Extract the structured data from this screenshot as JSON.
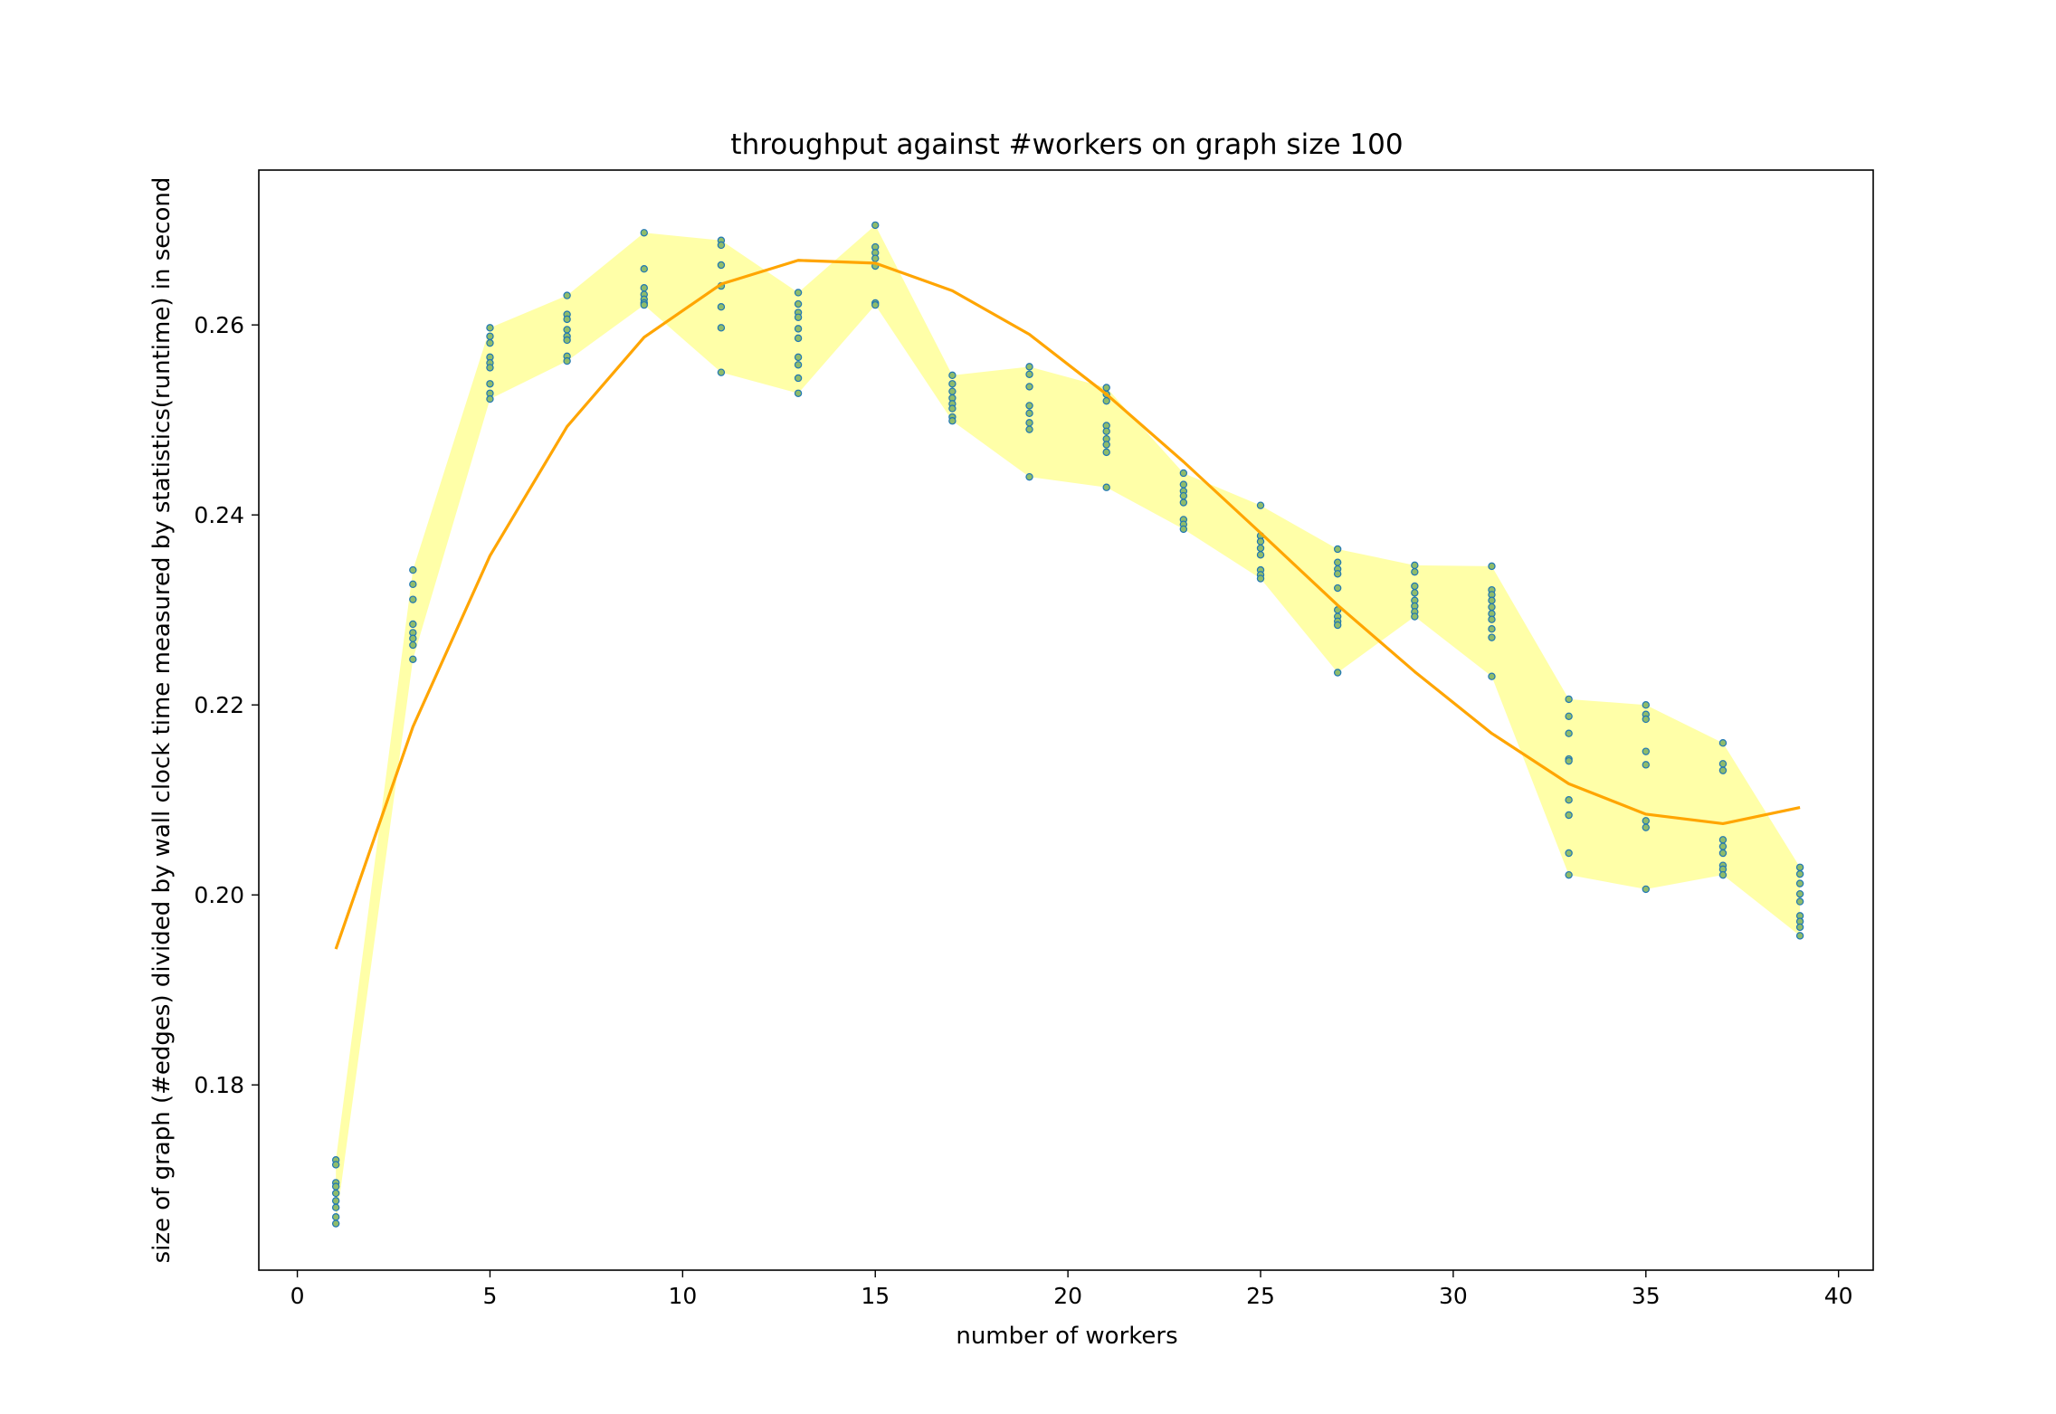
{
  "chart_data": {
    "type": "scatter",
    "title": "throughput against #workers on graph size 100",
    "xlabel": "number of workers",
    "ylabel": "size of graph (#edges) divided by wall clock time measured by statistics(runtime) in second",
    "xlim": [
      -1,
      40.9
    ],
    "ylim": [
      0.1605,
      0.2763
    ],
    "xticks": [
      0,
      5,
      10,
      15,
      20,
      25,
      30,
      35,
      40
    ],
    "yticks": [
      0.18,
      0.2,
      0.22,
      0.24,
      0.26
    ],
    "ytick_labels": [
      "0.18",
      "0.20",
      "0.22",
      "0.24",
      "0.26"
    ],
    "grid": false,
    "legend": "none",
    "colors": {
      "points_edge": "#1f77b4",
      "points_fill": "#8fbc6a",
      "band": "#ffff99",
      "fit_line": "#ffa500"
    },
    "points": [
      {
        "x": 1,
        "ys": [
          0.1721,
          0.1716,
          0.1697,
          0.1693,
          0.1686,
          0.1678,
          0.1671,
          0.1661,
          0.1654
        ]
      },
      {
        "x": 3,
        "ys": [
          0.2342,
          0.2327,
          0.2311,
          0.2285,
          0.2276,
          0.227,
          0.2263,
          0.2248
        ]
      },
      {
        "x": 5,
        "ys": [
          0.2597,
          0.2588,
          0.2581,
          0.2566,
          0.256,
          0.2555,
          0.2538,
          0.2528,
          0.2522
        ]
      },
      {
        "x": 7,
        "ys": [
          0.2631,
          0.2611,
          0.2606,
          0.2595,
          0.2588,
          0.2584,
          0.2567,
          0.2562
        ]
      },
      {
        "x": 9,
        "ys": [
          0.2697,
          0.2659,
          0.2639,
          0.2632,
          0.2627,
          0.2623,
          0.2621
        ]
      },
      {
        "x": 11,
        "ys": [
          0.2689,
          0.2684,
          0.2663,
          0.2641,
          0.2619,
          0.2597,
          0.255
        ]
      },
      {
        "x": 13,
        "ys": [
          0.2634,
          0.2622,
          0.2613,
          0.2608,
          0.2596,
          0.2586,
          0.2566,
          0.2558,
          0.2544,
          0.2528
        ]
      },
      {
        "x": 15,
        "ys": [
          0.2705,
          0.2682,
          0.2676,
          0.267,
          0.2662,
          0.2623,
          0.2621
        ]
      },
      {
        "x": 17,
        "ys": [
          0.2547,
          0.2538,
          0.253,
          0.2523,
          0.2517,
          0.2512,
          0.2503,
          0.2499
        ]
      },
      {
        "x": 19,
        "ys": [
          0.2556,
          0.2548,
          0.2535,
          0.2515,
          0.2507,
          0.2497,
          0.249,
          0.244
        ]
      },
      {
        "x": 21,
        "ys": [
          0.2534,
          0.2527,
          0.252,
          0.2494,
          0.2488,
          0.248,
          0.2474,
          0.2466,
          0.2429
        ]
      },
      {
        "x": 23,
        "ys": [
          0.2444,
          0.2432,
          0.2425,
          0.242,
          0.2413,
          0.2395,
          0.239,
          0.2385
        ]
      },
      {
        "x": 25,
        "ys": [
          0.241,
          0.2378,
          0.2372,
          0.2365,
          0.2358,
          0.2342,
          0.2337,
          0.2333
        ]
      },
      {
        "x": 27,
        "ys": [
          0.2364,
          0.235,
          0.2343,
          0.2338,
          0.2323,
          0.23,
          0.2293,
          0.2288,
          0.2284,
          0.2234
        ]
      },
      {
        "x": 29,
        "ys": [
          0.2347,
          0.234,
          0.2325,
          0.2318,
          0.231,
          0.2304,
          0.2298,
          0.2293
        ]
      },
      {
        "x": 31,
        "ys": [
          0.2346,
          0.2321,
          0.2316,
          0.231,
          0.2303,
          0.2296,
          0.229,
          0.228,
          0.2271,
          0.223
        ]
      },
      {
        "x": 33,
        "ys": [
          0.2206,
          0.2188,
          0.217,
          0.2143,
          0.2141,
          0.21,
          0.2084,
          0.2044,
          0.2021
        ]
      },
      {
        "x": 35,
        "ys": [
          0.22,
          0.219,
          0.2185,
          0.2151,
          0.2137,
          0.2078,
          0.2071,
          0.2006
        ]
      },
      {
        "x": 37,
        "ys": [
          0.216,
          0.2138,
          0.2131,
          0.2058,
          0.2051,
          0.2044,
          0.2031,
          0.2027,
          0.2021
        ]
      },
      {
        "x": 39,
        "ys": [
          0.2029,
          0.2022,
          0.2012,
          0.2001,
          0.1993,
          0.1978,
          0.1972,
          0.1966,
          0.1957
        ]
      }
    ],
    "fit_line": {
      "x": [
        1,
        3,
        5,
        7,
        9,
        11,
        13,
        15,
        17,
        19,
        21,
        23,
        25,
        27,
        29,
        31,
        33,
        35,
        37,
        39
      ],
      "y": [
        0.1943,
        0.2177,
        0.2357,
        0.2493,
        0.2587,
        0.2643,
        0.2668,
        0.2665,
        0.2636,
        0.259,
        0.2527,
        0.2456,
        0.2381,
        0.2305,
        0.2235,
        0.217,
        0.2117,
        0.2085,
        0.2075,
        0.2092
      ]
    }
  }
}
